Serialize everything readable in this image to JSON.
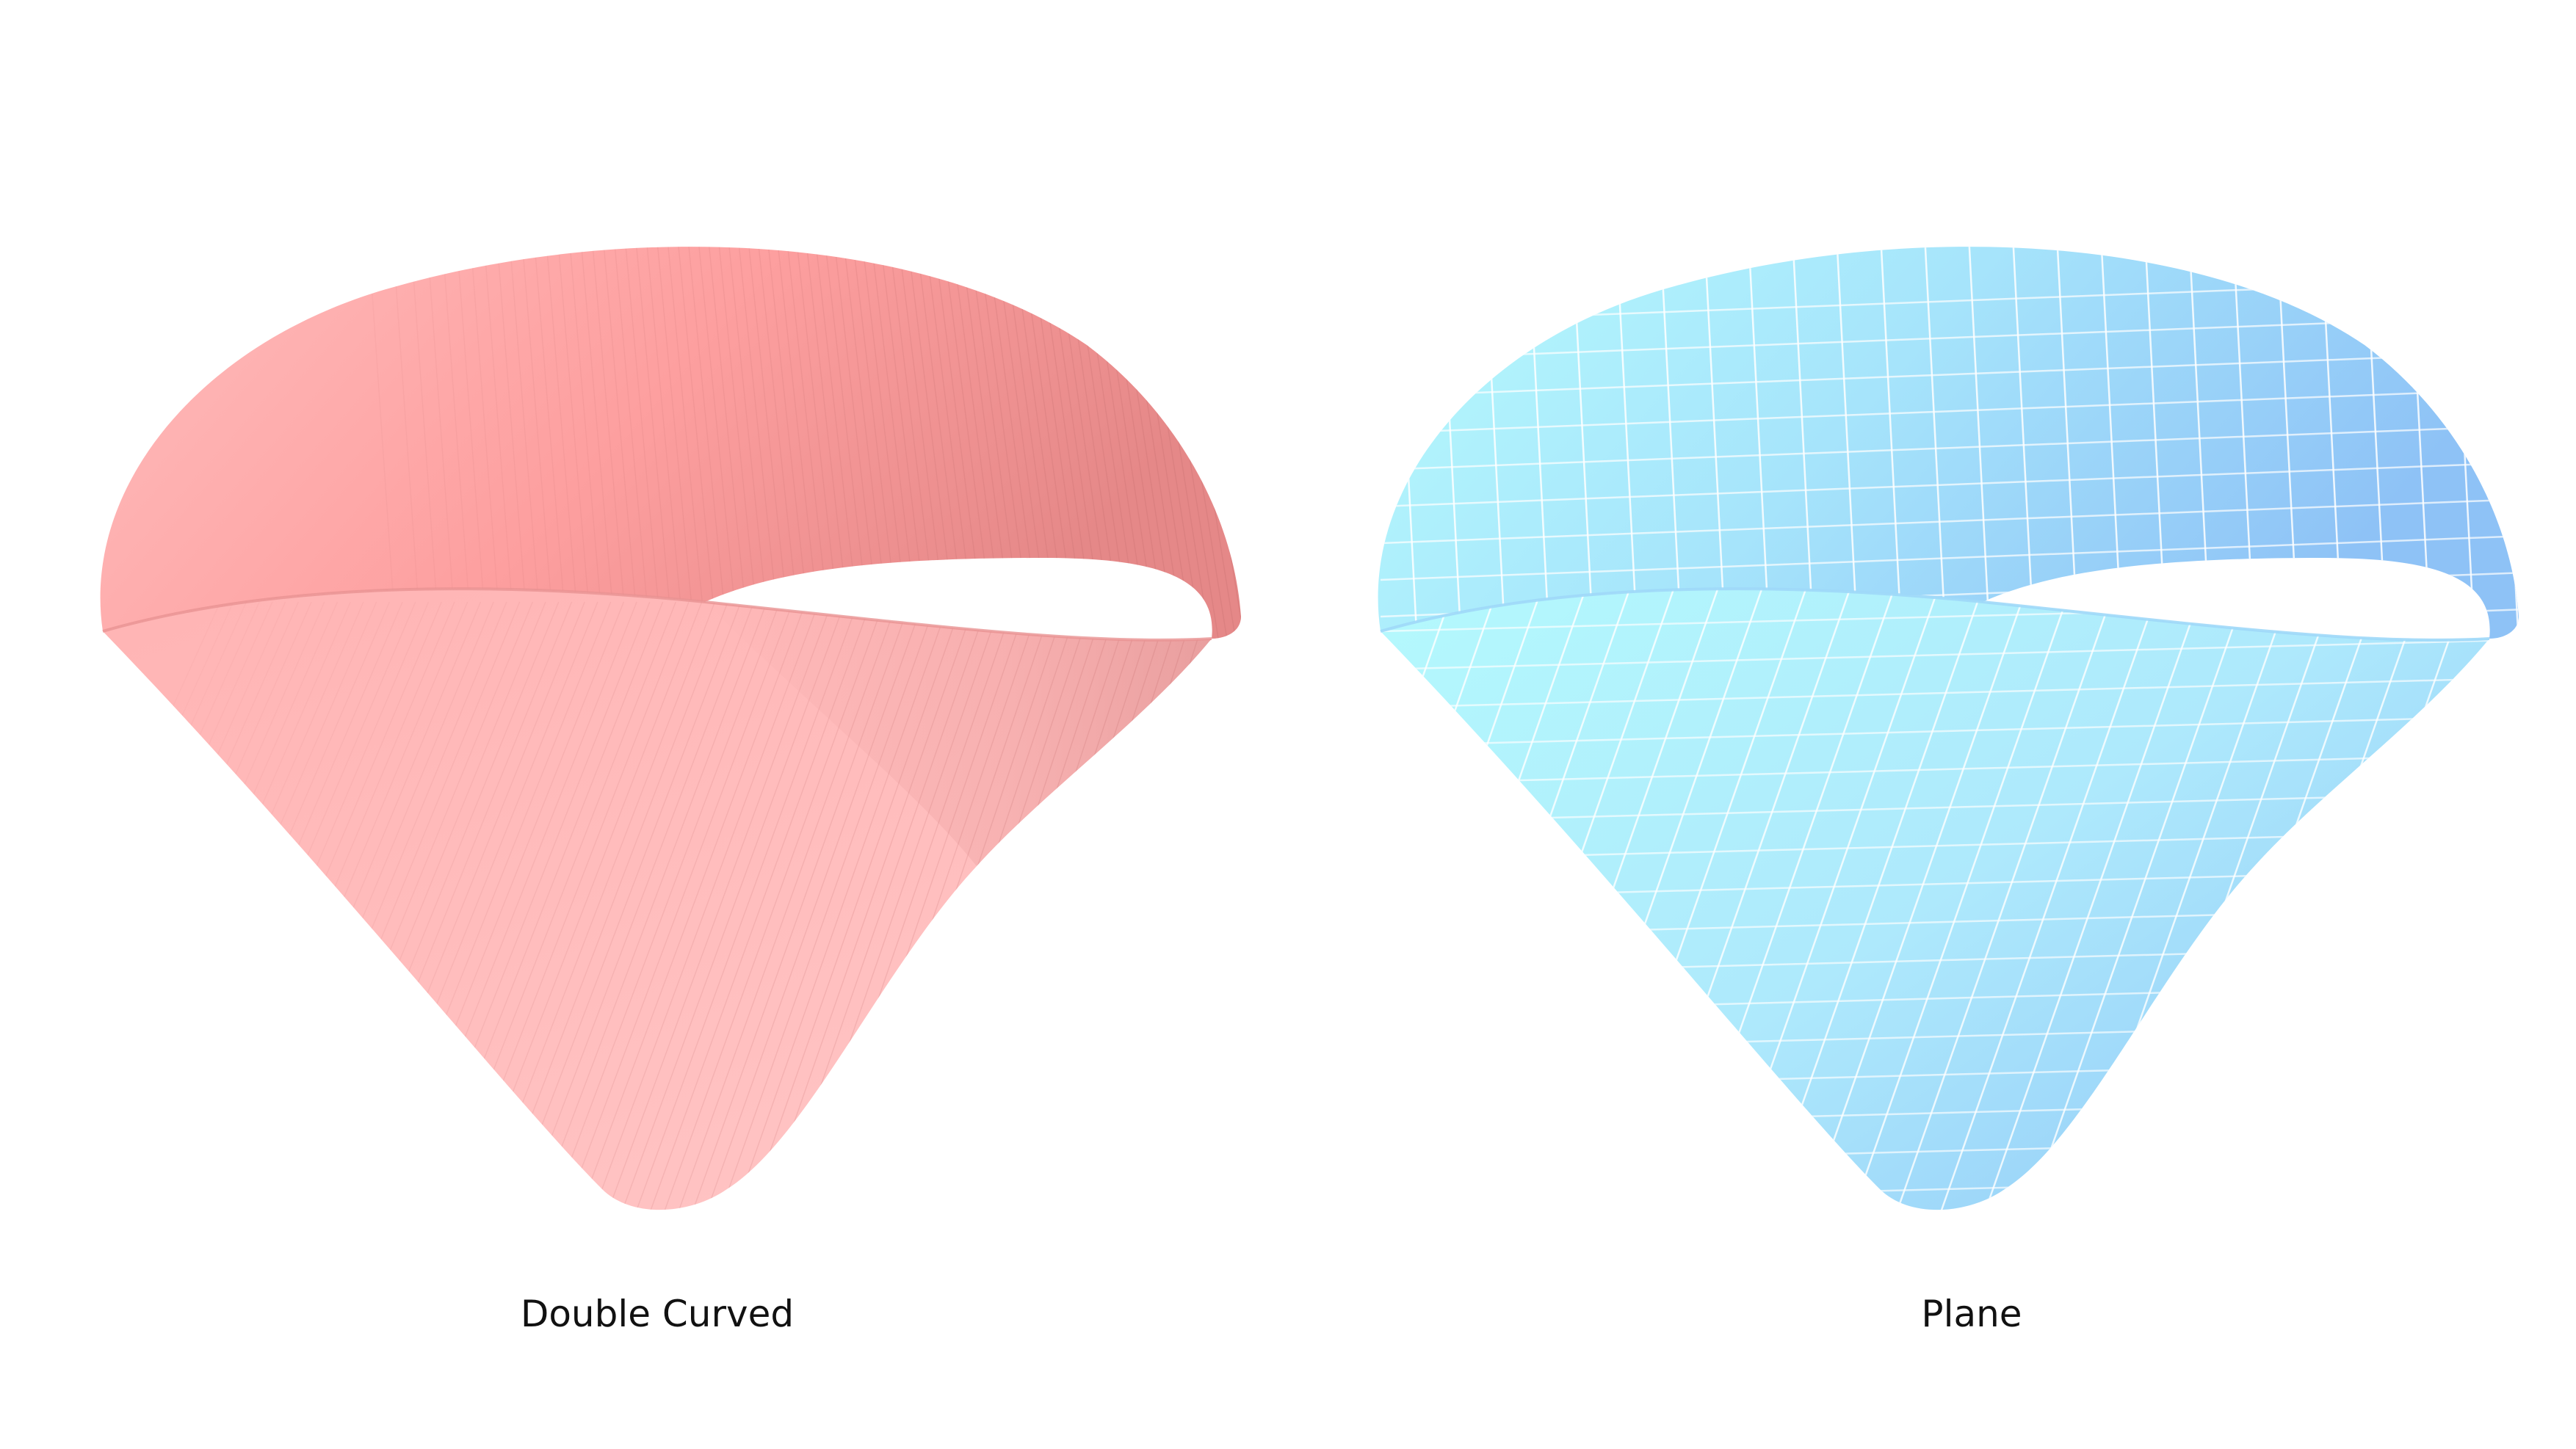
{
  "panels": [
    {
      "caption": "Double Curved",
      "colors": {
        "light": "#ffc2c2",
        "mid": "#fda2a2",
        "dark": "#e08585",
        "lines": "#c46e6e"
      }
    },
    {
      "caption": "Plane",
      "colors": {
        "light": "#b3f8fc",
        "mid": "#a8e2fb",
        "dark": "#8ec3f6",
        "lines": "#ffffff"
      }
    }
  ]
}
